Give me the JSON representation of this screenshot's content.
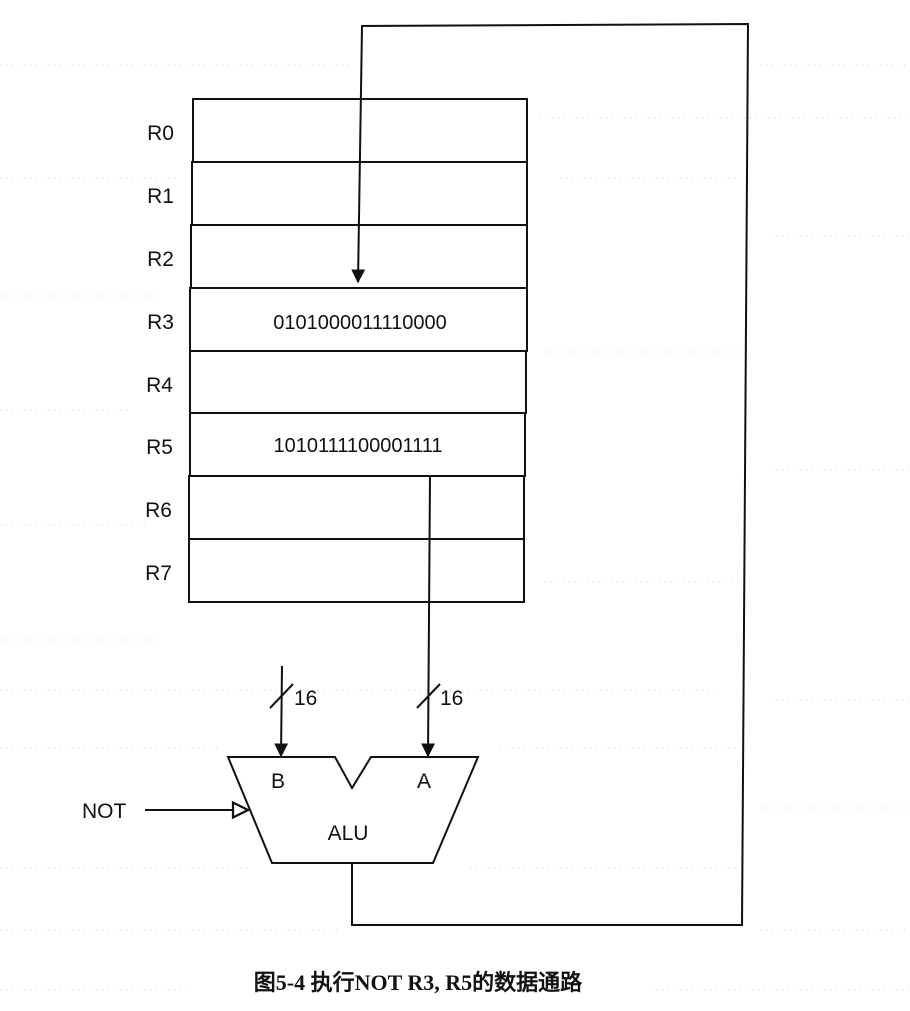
{
  "registers": [
    {
      "name": "R0",
      "value": ""
    },
    {
      "name": "R1",
      "value": ""
    },
    {
      "name": "R2",
      "value": ""
    },
    {
      "name": "R3",
      "value": "0101000011110000"
    },
    {
      "name": "R4",
      "value": ""
    },
    {
      "name": "R5",
      "value": "1010111100001111"
    },
    {
      "name": "R6",
      "value": ""
    },
    {
      "name": "R7",
      "value": ""
    }
  ],
  "bus": {
    "left_width": "16",
    "right_width": "16"
  },
  "alu": {
    "label": "ALU",
    "input_b": "B",
    "input_a": "A",
    "control": "NOT"
  },
  "caption": "图5-4  执行NOT R3, R5的数据通路"
}
